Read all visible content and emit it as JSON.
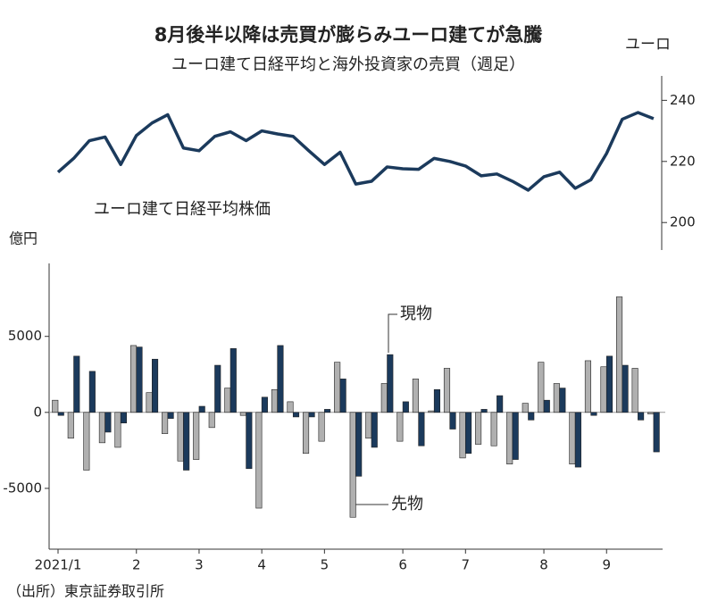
{
  "title": "8月後半以降は売買が膨らみユーロ建てが急騰",
  "subtitle": "ユーロ建て日経平均と海外投資家の売買（週足）",
  "source": "（出所）東京証券取引所",
  "chart_data": [
    {
      "type": "line",
      "y_axis_label": "ユーロ",
      "categories": [
        "2021/1",
        null,
        null,
        null,
        null,
        "2",
        null,
        null,
        null,
        "3",
        null,
        null,
        null,
        "4",
        null,
        null,
        null,
        "5",
        null,
        null,
        null,
        null,
        "6",
        null,
        null,
        null,
        "7",
        null,
        null,
        null,
        null,
        "8",
        null,
        null,
        null,
        "9",
        null,
        null,
        null
      ],
      "series": [
        {
          "name": "ユーロ建て日経平均株価",
          "color": "#1b3a5c",
          "values": [
            216.5,
            221,
            226.8,
            228,
            219,
            228.5,
            232.6,
            235.3,
            224.4,
            223.5,
            228.2,
            229.7,
            226.8,
            230,
            229,
            228.2,
            223.5,
            219,
            223,
            212.6,
            213.5,
            218.2,
            217.6,
            217.4,
            221,
            220,
            218.5,
            215.3,
            215.9,
            213.5,
            210.6,
            215,
            216.5,
            211.2,
            214,
            222.6,
            233.8,
            236,
            234
          ]
        }
      ],
      "ylim": [
        191,
        248
      ],
      "yticks": [
        200,
        220,
        240
      ]
    },
    {
      "type": "bar",
      "y_axis_label": "億円",
      "categories": [
        "2021/1",
        null,
        null,
        null,
        null,
        "2",
        null,
        null,
        null,
        "3",
        null,
        null,
        null,
        "4",
        null,
        null,
        null,
        "5",
        null,
        null,
        null,
        null,
        "6",
        null,
        null,
        null,
        "7",
        null,
        null,
        null,
        null,
        "8",
        null,
        null,
        null,
        "9",
        null,
        null,
        null
      ],
      "series": [
        {
          "name": "先物",
          "color": "#b0b0b0",
          "values": [
            800,
            -1700,
            -3800,
            -2000,
            -2300,
            4400,
            1300,
            -1400,
            -3200,
            -3100,
            -1000,
            1600,
            -200,
            -6300,
            1500,
            700,
            -2700,
            -1900,
            3300,
            -6900,
            -1700,
            1900,
            -1900,
            2200,
            100,
            2900,
            -3000,
            -2100,
            -2200,
            -3400,
            600,
            3300,
            1900,
            -3400,
            3400,
            3000,
            7600,
            2900,
            -100
          ]
        },
        {
          "name": "現物",
          "color": "#1b3a5c",
          "values": [
            -200,
            3700,
            2700,
            -1300,
            -700,
            4300,
            3500,
            -400,
            -3800,
            400,
            3100,
            4200,
            -3700,
            1000,
            4400,
            -300,
            -300,
            200,
            2200,
            -4200,
            -2300,
            3800,
            700,
            -2200,
            1500,
            -1100,
            -2700,
            200,
            1100,
            -3100,
            -500,
            800,
            1600,
            -3600,
            -200,
            3700,
            3100,
            -500,
            -2600
          ]
        }
      ],
      "ylim": [
        -9000,
        9800
      ],
      "yticks": [
        -5000,
        0,
        5000
      ]
    }
  ]
}
